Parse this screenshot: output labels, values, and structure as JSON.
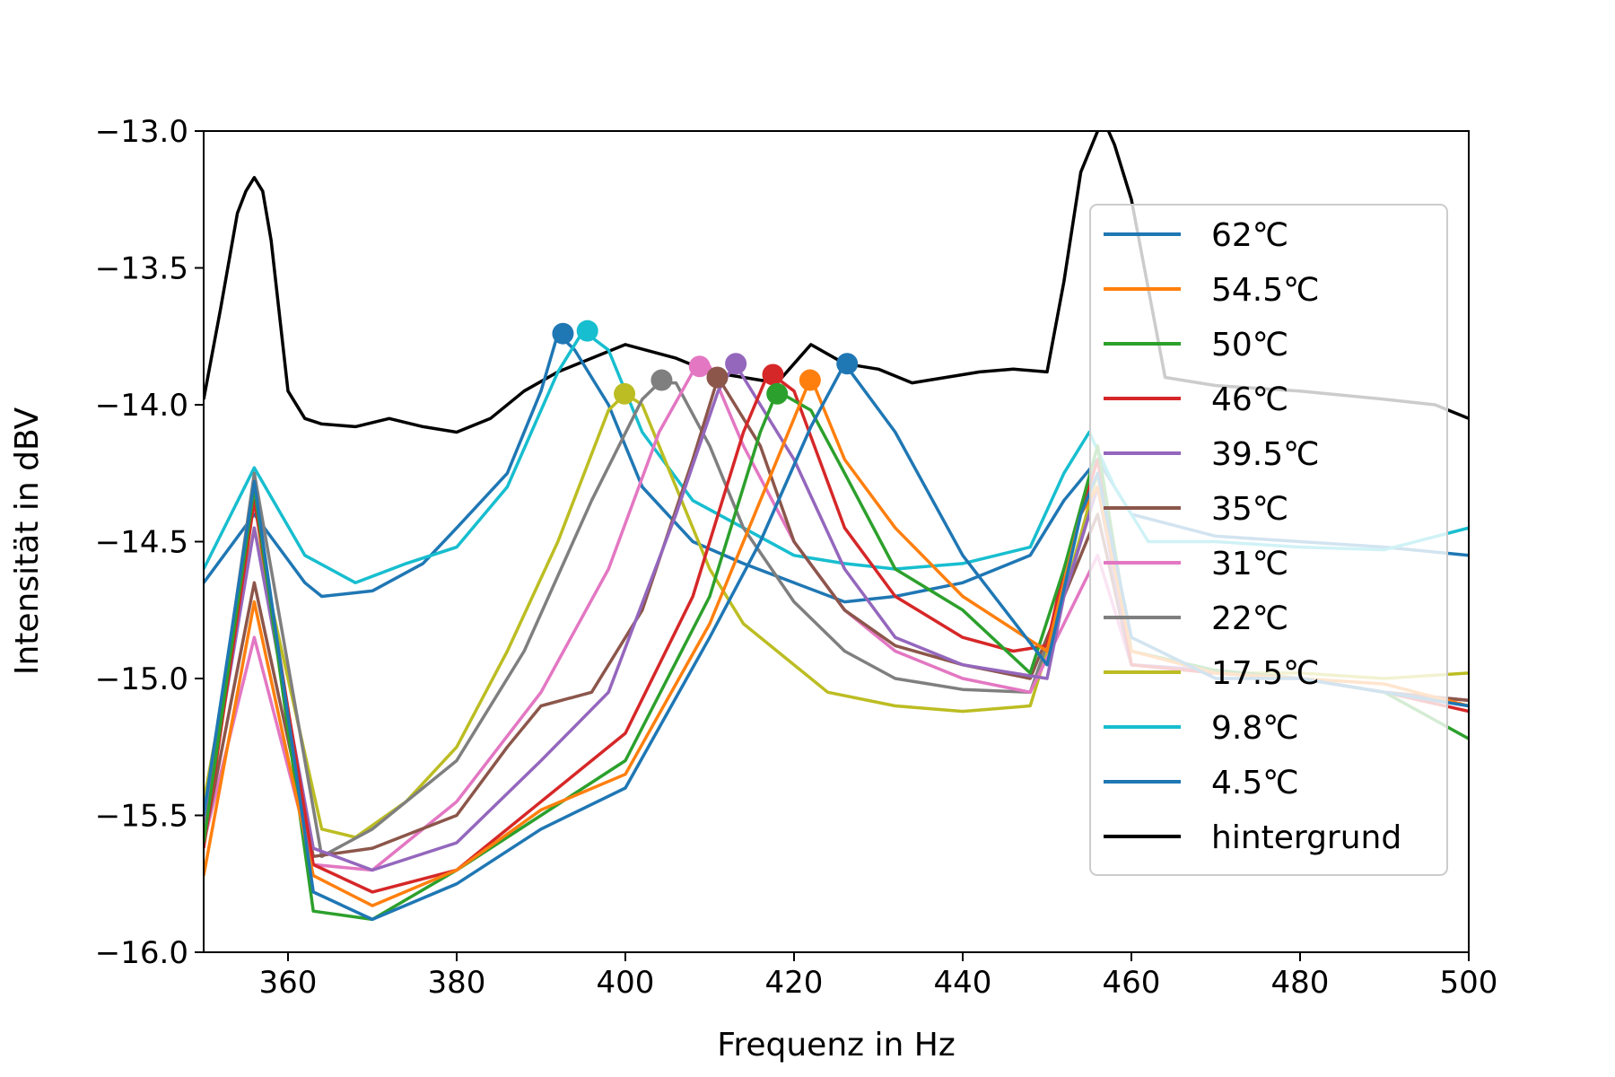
{
  "chart_data": {
    "type": "line",
    "xlabel": "Frequenz in Hz",
    "ylabel": "Intensität in dBV",
    "xlim": [
      350,
      500
    ],
    "ylim": [
      -16.0,
      -13.0
    ],
    "xticks": [
      360,
      380,
      400,
      420,
      440,
      460,
      480,
      500
    ],
    "yticks": [
      -13.0,
      -13.5,
      -14.0,
      -14.5,
      -15.0,
      -15.5,
      -16.0
    ],
    "xtick_labels": [
      "360",
      "380",
      "400",
      "420",
      "440",
      "460",
      "480",
      "500"
    ],
    "ytick_labels": [
      "−13.0",
      "−13.5",
      "−14.0",
      "−14.5",
      "−15.0",
      "−15.5",
      "−16.0"
    ],
    "grid": false,
    "legend_position": "right",
    "series": [
      {
        "name": "62℃",
        "color": "#1f77b4",
        "x": [
          350,
          356,
          363,
          370,
          380,
          390,
          400,
          410,
          416,
          422,
          426,
          432,
          440,
          450,
          454,
          456,
          460,
          470,
          480,
          490,
          500
        ],
        "y": [
          -15.5,
          -14.28,
          -15.78,
          -15.88,
          -15.75,
          -15.55,
          -15.4,
          -14.85,
          -14.5,
          -14.08,
          -13.85,
          -14.1,
          -14.55,
          -14.95,
          -14.4,
          -14.25,
          -14.85,
          -15.0,
          -15.0,
          -15.05,
          -15.1
        ],
        "peak": [
          426.3,
          -13.85
        ]
      },
      {
        "name": "54.5℃",
        "color": "#ff7f0e",
        "x": [
          350,
          356,
          363,
          370,
          380,
          390,
          400,
          410,
          418,
          422,
          426,
          432,
          440,
          450,
          454,
          456,
          460,
          470,
          480,
          490,
          500
        ],
        "y": [
          -15.72,
          -14.72,
          -15.72,
          -15.83,
          -15.7,
          -15.48,
          -15.35,
          -14.8,
          -14.2,
          -13.9,
          -14.2,
          -14.45,
          -14.7,
          -14.9,
          -14.4,
          -14.3,
          -14.9,
          -14.98,
          -15.0,
          -15.02,
          -15.1
        ],
        "peak": [
          421.9,
          -13.91
        ]
      },
      {
        "name": "50℃",
        "color": "#2ca02c",
        "x": [
          350,
          356,
          363,
          370,
          380,
          390,
          400,
          410,
          416,
          418,
          422,
          426,
          432,
          440,
          448,
          452,
          456,
          460,
          470,
          480,
          490,
          500
        ],
        "y": [
          -15.6,
          -14.3,
          -15.85,
          -15.88,
          -15.7,
          -15.5,
          -15.3,
          -14.7,
          -14.1,
          -13.95,
          -14.02,
          -14.25,
          -14.6,
          -14.75,
          -14.98,
          -14.6,
          -14.15,
          -14.9,
          -14.97,
          -15.0,
          -15.05,
          -15.22
        ],
        "peak": [
          418.0,
          -13.96
        ]
      },
      {
        "name": "46℃",
        "color": "#d62728",
        "x": [
          350,
          356,
          363,
          370,
          380,
          390,
          400,
          408,
          414,
          417,
          420,
          426,
          432,
          440,
          446,
          450,
          452,
          456,
          460,
          470,
          480,
          490,
          500
        ],
        "y": [
          -15.62,
          -14.35,
          -15.68,
          -15.78,
          -15.7,
          -15.45,
          -15.2,
          -14.7,
          -14.1,
          -13.88,
          -13.95,
          -14.45,
          -14.7,
          -14.85,
          -14.9,
          -14.88,
          -14.6,
          -14.2,
          -14.95,
          -14.98,
          -15.0,
          -15.05,
          -15.12
        ],
        "peak": [
          417.5,
          -13.89
        ]
      },
      {
        "name": "39.5℃",
        "color": "#9467bd",
        "x": [
          350,
          356,
          363,
          370,
          380,
          390,
          398,
          406,
          411,
          413,
          416,
          420,
          426,
          432,
          440,
          450,
          452,
          456,
          460,
          470,
          480,
          490,
          500
        ],
        "y": [
          -15.55,
          -14.45,
          -15.62,
          -15.7,
          -15.6,
          -15.3,
          -15.05,
          -14.4,
          -13.95,
          -13.85,
          -14.0,
          -14.2,
          -14.6,
          -14.85,
          -14.95,
          -15.0,
          -14.7,
          -14.3,
          -14.95,
          -14.97,
          -15.0,
          -15.05,
          -15.1
        ],
        "peak": [
          413.1,
          -13.85
        ]
      },
      {
        "name": "35℃",
        "color": "#8c564b",
        "x": [
          350,
          356,
          363,
          370,
          380,
          386,
          390,
          396,
          402,
          408,
          411,
          416,
          420,
          426,
          432,
          440,
          448,
          452,
          456,
          460,
          470,
          480,
          490,
          500
        ],
        "y": [
          -15.6,
          -14.65,
          -15.65,
          -15.62,
          -15.5,
          -15.25,
          -15.1,
          -15.05,
          -14.75,
          -14.2,
          -13.9,
          -14.15,
          -14.5,
          -14.75,
          -14.88,
          -14.95,
          -15.0,
          -14.7,
          -14.4,
          -14.95,
          -14.98,
          -15.0,
          -15.05,
          -15.08
        ],
        "peak": [
          410.9,
          -13.9
        ]
      },
      {
        "name": "31℃",
        "color": "#e377c2",
        "x": [
          350,
          356,
          363,
          370,
          380,
          390,
          398,
          404,
          408,
          410,
          414,
          420,
          426,
          432,
          440,
          448,
          452,
          456,
          460,
          470,
          480,
          490,
          500
        ],
        "y": [
          -15.6,
          -14.85,
          -15.68,
          -15.7,
          -15.45,
          -15.05,
          -14.6,
          -14.1,
          -13.88,
          -13.86,
          -14.15,
          -14.5,
          -14.75,
          -14.9,
          -15.0,
          -15.05,
          -14.8,
          -14.55,
          -14.95,
          -14.98,
          -15.0,
          -15.05,
          -15.08
        ],
        "peak": [
          408.8,
          -13.86
        ]
      },
      {
        "name": "22℃",
        "color": "#7f7f7f",
        "x": [
          350,
          356,
          364,
          370,
          380,
          388,
          396,
          402,
          404,
          406,
          410,
          414,
          420,
          426,
          432,
          440,
          448,
          452,
          456,
          460,
          470,
          480,
          490,
          500
        ],
        "y": [
          -15.55,
          -14.25,
          -15.65,
          -15.55,
          -15.3,
          -14.9,
          -14.35,
          -13.98,
          -13.92,
          -13.92,
          -14.15,
          -14.45,
          -14.72,
          -14.9,
          -15.0,
          -15.04,
          -15.05,
          -14.7,
          -14.3,
          -14.95,
          -14.98,
          -15.0,
          -15.05,
          -15.08
        ],
        "peak": [
          404.3,
          -13.91
        ]
      },
      {
        "name": "17.5℃",
        "color": "#bcbd22",
        "x": [
          350,
          356,
          364,
          368,
          374,
          380,
          386,
          392,
          398,
          400,
          402,
          406,
          410,
          414,
          418,
          424,
          432,
          440,
          448,
          452,
          456,
          460,
          470,
          480,
          490,
          500
        ],
        "y": [
          -15.45,
          -14.45,
          -15.55,
          -15.58,
          -15.45,
          -15.25,
          -14.9,
          -14.5,
          -14.02,
          -13.96,
          -14.0,
          -14.3,
          -14.6,
          -14.8,
          -14.9,
          -15.05,
          -15.1,
          -15.12,
          -15.1,
          -14.7,
          -14.25,
          -14.95,
          -14.98,
          -14.98,
          -15.0,
          -14.98
        ],
        "peak": [
          399.9,
          -13.96
        ]
      },
      {
        "name": "9.8℃",
        "color": "#17becf",
        "x": [
          350,
          356,
          362,
          368,
          374,
          380,
          386,
          392,
          395,
          398,
          402,
          408,
          414,
          420,
          426,
          432,
          440,
          448,
          452,
          455,
          458,
          462,
          470,
          480,
          490,
          500
        ],
        "y": [
          -14.6,
          -14.23,
          -14.55,
          -14.65,
          -14.58,
          -14.52,
          -14.3,
          -13.88,
          -13.73,
          -13.8,
          -14.1,
          -14.35,
          -14.45,
          -14.55,
          -14.58,
          -14.6,
          -14.58,
          -14.52,
          -14.25,
          -14.1,
          -14.3,
          -14.5,
          -14.5,
          -14.52,
          -14.53,
          -14.45
        ],
        "peak": [
          395.5,
          -13.73
        ]
      },
      {
        "name": "4.5℃",
        "color": "#1f77b4",
        "x": [
          350,
          356,
          362,
          364,
          370,
          376,
          380,
          386,
          390,
          392,
          394,
          398,
          402,
          408,
          414,
          420,
          426,
          432,
          440,
          448,
          452,
          456,
          460,
          470,
          480,
          490,
          500
        ],
        "y": [
          -14.65,
          -14.4,
          -14.65,
          -14.7,
          -14.68,
          -14.58,
          -14.45,
          -14.25,
          -13.95,
          -13.74,
          -13.8,
          -14.0,
          -14.3,
          -14.5,
          -14.58,
          -14.65,
          -14.72,
          -14.7,
          -14.65,
          -14.55,
          -14.35,
          -14.2,
          -14.4,
          -14.48,
          -14.5,
          -14.52,
          -14.55
        ],
        "peak": [
          392.6,
          -13.74
        ]
      },
      {
        "name": "hintergrund",
        "color": "#000000",
        "x": [
          350,
          352,
          354,
          355,
          356,
          357,
          358,
          360,
          362,
          364,
          368,
          372,
          376,
          380,
          384,
          388,
          392,
          396,
          400,
          406,
          410,
          414,
          418,
          422,
          426,
          430,
          434,
          438,
          442,
          446,
          450,
          452,
          454,
          456,
          457,
          458,
          460,
          464,
          470,
          480,
          490,
          496,
          500
        ],
        "y": [
          -13.98,
          -13.65,
          -13.3,
          -13.22,
          -13.17,
          -13.22,
          -13.4,
          -13.95,
          -14.05,
          -14.07,
          -14.08,
          -14.05,
          -14.08,
          -14.1,
          -14.05,
          -13.95,
          -13.88,
          -13.83,
          -13.78,
          -13.83,
          -13.88,
          -13.9,
          -13.92,
          -13.78,
          -13.85,
          -13.87,
          -13.92,
          -13.9,
          -13.88,
          -13.87,
          -13.88,
          -13.55,
          -13.15,
          -13.0,
          -12.98,
          -13.05,
          -13.25,
          -13.9,
          -13.93,
          -13.95,
          -13.98,
          -14.0,
          -14.05
        ],
        "peak": null
      }
    ]
  }
}
